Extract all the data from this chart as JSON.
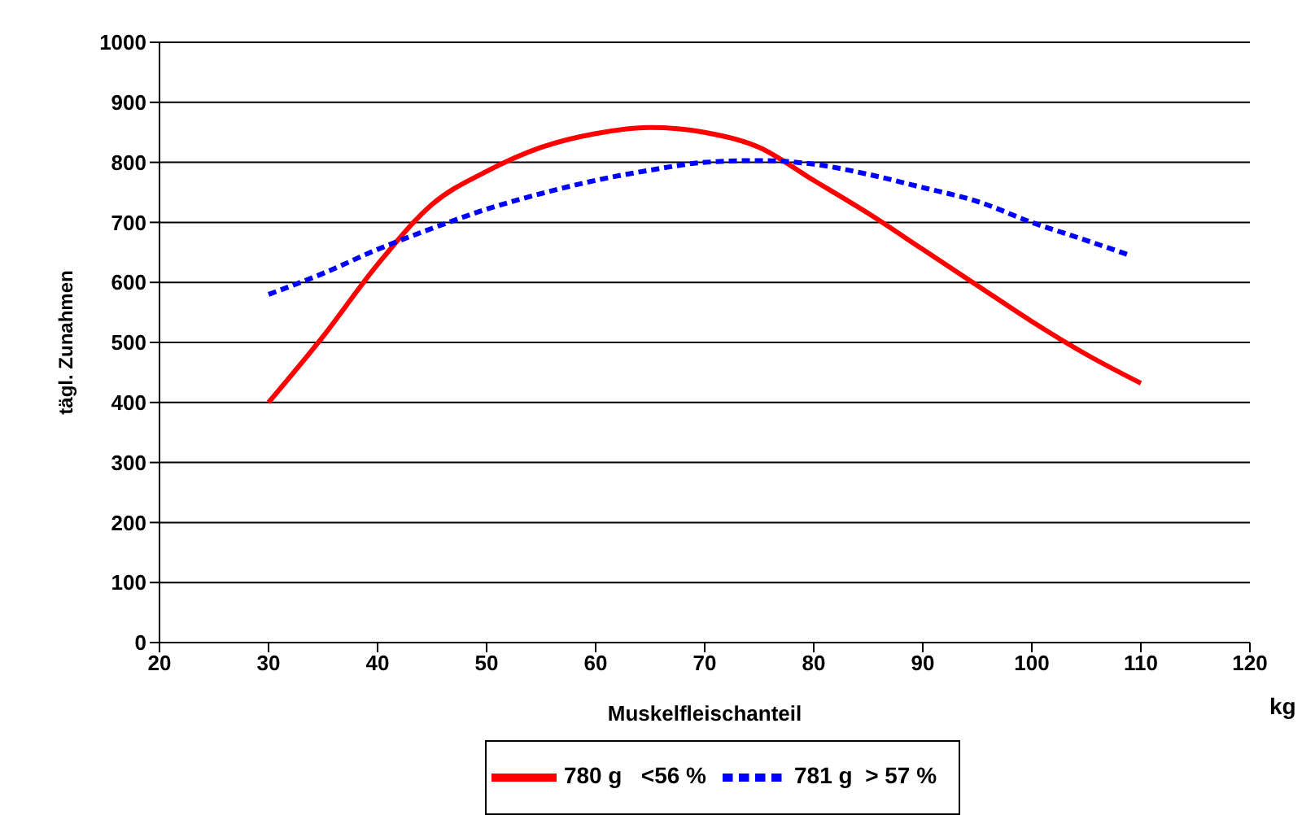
{
  "chart_data": {
    "type": "line",
    "xlabel": "Muskelfleischanteil",
    "ylabel": "tägl. Zunahmen",
    "annotations": [
      "kg"
    ],
    "xlim": [
      20,
      120
    ],
    "xticks": [
      20,
      30,
      40,
      50,
      60,
      70,
      80,
      90,
      100,
      110,
      120
    ],
    "ylim": [
      0,
      1000
    ],
    "yticks": [
      0,
      100,
      200,
      300,
      400,
      500,
      600,
      700,
      800,
      900,
      1000
    ],
    "grid": "y",
    "legend": "bottom",
    "marker": "none",
    "series": [
      {
        "name": "780 g   <56 %",
        "color": "#ff0000",
        "line_style": "solid",
        "x": [
          30,
          35,
          40,
          45,
          50,
          55,
          60,
          65,
          70,
          75,
          80,
          85,
          90,
          95,
          100,
          105,
          110
        ],
        "values": [
          400,
          510,
          630,
          730,
          785,
          825,
          848,
          858,
          850,
          825,
          770,
          715,
          655,
          595,
          535,
          480,
          432
        ]
      },
      {
        "name": "781 g  > 57 %",
        "color": "#0000ff",
        "line_style": "dashed",
        "x": [
          30,
          35,
          40,
          45,
          50,
          55,
          60,
          65,
          70,
          75,
          80,
          85,
          90,
          95,
          100,
          105,
          109
        ],
        "values": [
          580,
          615,
          655,
          690,
          722,
          748,
          770,
          787,
          800,
          803,
          797,
          780,
          758,
          735,
          700,
          670,
          645
        ]
      }
    ]
  }
}
